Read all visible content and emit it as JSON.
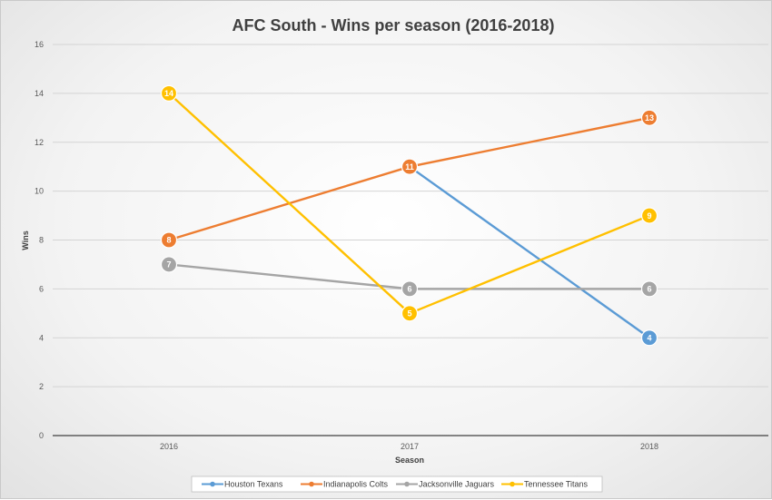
{
  "chart_data": {
    "type": "line",
    "title": "AFC South - Wins per season (2016-2018)",
    "xlabel": "Season",
    "ylabel": "Wins",
    "categories": [
      "2016",
      "2017",
      "2018"
    ],
    "ylim": [
      0,
      16
    ],
    "yticks": [
      0,
      2,
      4,
      6,
      8,
      10,
      12,
      14,
      16
    ],
    "grid": true,
    "legend_position": "bottom",
    "series": [
      {
        "name": "Houston Texans",
        "color": "#5b9bd5",
        "values": [
          null,
          11,
          4
        ],
        "labels": [
          null,
          null,
          "4"
        ]
      },
      {
        "name": "Indianapolis Colts",
        "color": "#ed7d31",
        "values": [
          8,
          11,
          13
        ],
        "labels": [
          "8",
          "11",
          "13"
        ]
      },
      {
        "name": "Jacksonville Jaguars",
        "color": "#a5a5a5",
        "values": [
          7,
          6,
          6
        ],
        "labels": [
          "7",
          "6",
          "6"
        ]
      },
      {
        "name": "Tennessee Titans",
        "color": "#ffc000",
        "values": [
          14,
          5,
          9
        ],
        "labels": [
          "14",
          "5",
          "9"
        ]
      }
    ]
  }
}
